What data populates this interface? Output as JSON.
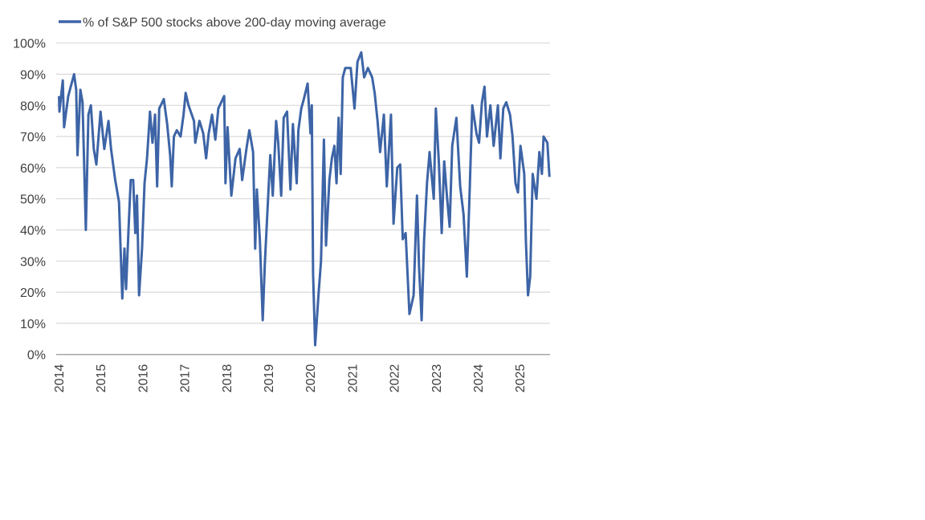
{
  "chart_data": {
    "type": "line",
    "title": "",
    "xlabel": "",
    "ylabel": "",
    "legend_position": "top-left",
    "grid": "horizontal",
    "xlim": [
      2014,
      2025.72
    ],
    "ylim": [
      0,
      100
    ],
    "x_tick_labels": [
      "2014",
      "2015",
      "2016",
      "2017",
      "2018",
      "2019",
      "2020",
      "2021",
      "2022",
      "2023",
      "2024",
      "2025"
    ],
    "y_tick_labels": [
      "0%",
      "10%",
      "20%",
      "30%",
      "40%",
      "50%",
      "60%",
      "70%",
      "80%",
      "90%",
      "100%"
    ],
    "series": [
      {
        "name": "% of S&P 500 stocks above 200-day moving average",
        "color": "#3d64a6",
        "x": [
          2014.01,
          2014.02,
          2014.1,
          2014.13,
          2014.23,
          2014.29,
          2014.37,
          2014.42,
          2014.45,
          2014.52,
          2014.57,
          2014.65,
          2014.71,
          2014.77,
          2014.84,
          2014.9,
          2015.0,
          2015.09,
          2015.19,
          2015.25,
          2015.35,
          2015.44,
          2015.52,
          2015.57,
          2015.61,
          2015.67,
          2015.72,
          2015.78,
          2015.83,
          2015.87,
          2015.92,
          2015.99,
          2016.05,
          2016.11,
          2016.18,
          2016.24,
          2016.3,
          2016.35,
          2016.4,
          2016.51,
          2016.59,
          2016.66,
          2016.7,
          2016.75,
          2016.82,
          2016.91,
          2016.98,
          2017.03,
          2017.1,
          2017.23,
          2017.26,
          2017.36,
          2017.45,
          2017.52,
          2017.58,
          2017.66,
          2017.74,
          2017.81,
          2017.95,
          2017.98,
          2018.03,
          2018.12,
          2018.22,
          2018.32,
          2018.38,
          2018.48,
          2018.55,
          2018.64,
          2018.69,
          2018.73,
          2018.8,
          2018.87,
          2018.92,
          2019.02,
          2019.05,
          2019.11,
          2019.19,
          2019.24,
          2019.31,
          2019.37,
          2019.45,
          2019.53,
          2019.59,
          2019.68,
          2019.72,
          2019.79,
          2019.85,
          2019.94,
          2020.01,
          2020.04,
          2020.07,
          2020.12,
          2020.2,
          2020.26,
          2020.33,
          2020.38,
          2020.46,
          2020.52,
          2020.58,
          2020.63,
          2020.68,
          2020.73,
          2020.78,
          2020.84,
          2020.97,
          2021.06,
          2021.13,
          2021.22,
          2021.29,
          2021.38,
          2021.48,
          2021.54,
          2021.61,
          2021.67,
          2021.76,
          2021.83,
          2021.93,
          2021.99,
          2022.08,
          2022.15,
          2022.21,
          2022.28,
          2022.37,
          2022.47,
          2022.55,
          2022.6,
          2022.66,
          2022.72,
          2022.79,
          2022.85,
          2022.95,
          2023.0,
          2023.07,
          2023.14,
          2023.2,
          2023.27,
          2023.33,
          2023.39,
          2023.49,
          2023.58,
          2023.66,
          2023.74,
          2023.81,
          2023.87,
          2023.97,
          2024.03,
          2024.1,
          2024.16,
          2024.22,
          2024.3,
          2024.38,
          2024.48,
          2024.54,
          2024.61,
          2024.68,
          2024.77,
          2024.83,
          2024.9,
          2024.96,
          2025.02,
          2025.11,
          2025.15,
          2025.2,
          2025.25,
          2025.31,
          2025.4,
          2025.47,
          2025.53,
          2025.57,
          2025.66,
          2025.71
        ],
        "values": [
          83,
          78,
          88,
          73,
          83,
          86,
          90,
          85,
          64,
          85,
          81,
          40,
          77,
          80,
          66,
          61,
          78,
          66,
          75,
          66,
          56,
          49,
          18,
          34,
          21,
          41,
          56,
          56,
          39,
          51,
          19,
          34,
          55,
          63,
          78,
          68,
          77,
          54,
          79,
          82,
          74,
          64,
          54,
          70,
          72,
          70,
          77,
          84,
          80,
          75,
          68,
          75,
          71,
          63,
          71,
          77,
          69,
          79,
          83,
          55,
          73,
          51,
          63,
          66,
          56,
          66,
          72,
          65,
          34,
          53,
          37,
          11,
          29,
          56,
          64,
          51,
          75,
          68,
          51,
          76,
          78,
          53,
          74,
          55,
          72,
          79,
          82,
          87,
          71,
          80,
          26,
          3,
          19,
          30,
          69,
          35,
          56,
          63,
          67,
          55,
          76,
          58,
          89,
          92,
          92,
          79,
          94,
          97,
          89,
          92,
          89,
          84,
          75,
          65,
          77,
          54,
          77,
          42,
          60,
          61,
          37,
          39,
          13,
          19,
          51,
          28,
          11,
          37,
          55,
          65,
          50,
          79,
          62,
          39,
          62,
          50,
          41,
          67,
          76,
          54,
          45,
          25,
          54,
          80,
          71,
          68,
          81,
          86,
          70,
          80,
          67,
          80,
          63,
          79,
          81,
          77,
          70,
          55,
          52,
          67,
          58,
          36,
          19,
          25,
          58,
          50,
          65,
          58,
          70,
          68,
          57
        ]
      }
    ]
  }
}
